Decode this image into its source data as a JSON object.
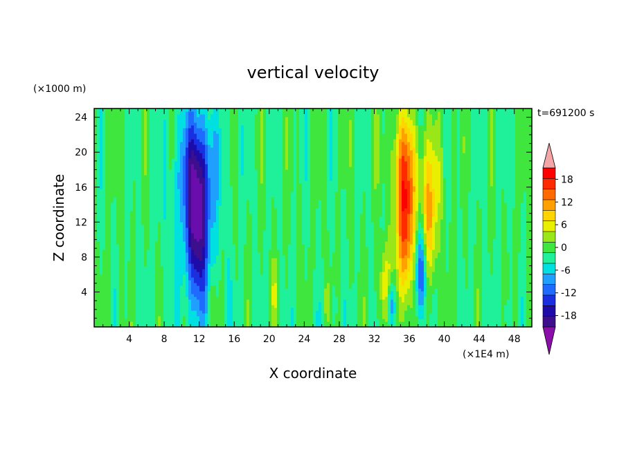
{
  "chart_data": {
    "type": "heatmap",
    "title": "vertical velocity",
    "xlabel": "X coordinate",
    "ylabel": "Z coordinate",
    "x_unit": "(×1E4 m)",
    "y_unit": "(×1000 m)",
    "time_label": "t=691200 s",
    "xlim": [
      0,
      50
    ],
    "ylim": [
      0,
      25
    ],
    "x_ticks": [
      4,
      8,
      12,
      16,
      20,
      24,
      28,
      32,
      36,
      40,
      44,
      48
    ],
    "x_tick_labels": [
      "4",
      "8",
      "12",
      "16",
      "20",
      "24",
      "28",
      "32",
      "36",
      "40",
      "44",
      "48"
    ],
    "y_ticks": [
      4,
      8,
      12,
      16,
      20,
      24
    ],
    "y_tick_labels": [
      "4",
      "8",
      "12",
      "16",
      "20",
      "24"
    ],
    "background_value": 0,
    "blobs": [
      {
        "x": 11.8,
        "z": 12.5,
        "sx": 0.9,
        "sz": 6.5,
        "amp": -20
      },
      {
        "x": 11.5,
        "z": 19.0,
        "sx": 1.6,
        "sz": 4.5,
        "amp": -6
      },
      {
        "x": 11.6,
        "z": 11.0,
        "sx": 2.6,
        "sz": 10.0,
        "amp": -3
      },
      {
        "x": 35.6,
        "z": 12.0,
        "sx": 0.8,
        "sz": 6.5,
        "amp": 19
      },
      {
        "x": 35.4,
        "z": 19.5,
        "sx": 1.4,
        "sz": 4.0,
        "amp": 6
      },
      {
        "x": 37.4,
        "z": 6.5,
        "sx": 0.55,
        "sz": 3.8,
        "amp": -16
      },
      {
        "x": 38.2,
        "z": 10.0,
        "sx": 0.6,
        "sz": 5.0,
        "amp": 12
      },
      {
        "x": 38.6,
        "z": 17.0,
        "sx": 1.0,
        "sz": 4.5,
        "amp": 5
      },
      {
        "x": 33.2,
        "z": 4.5,
        "sx": 0.45,
        "sz": 3.2,
        "amp": 9
      },
      {
        "x": 33.9,
        "z": 2.5,
        "sx": 0.35,
        "sz": 2.0,
        "amp": -12
      },
      {
        "x": 20.6,
        "z": 4.0,
        "sx": 0.4,
        "sz": 2.5,
        "amp": 4
      },
      {
        "x": 26.8,
        "z": 3.0,
        "sx": 0.35,
        "sz": 2.0,
        "amp": 4
      },
      {
        "x": 13.6,
        "z": 3.0,
        "sx": 0.3,
        "sz": 2.0,
        "amp": 4
      },
      {
        "x": 27.4,
        "z": 2.5,
        "sx": 0.3,
        "sz": 1.5,
        "amp": -5
      },
      {
        "x": 47.0,
        "z": 1.5,
        "sx": 0.3,
        "sz": 1.5,
        "amp": -4
      }
    ],
    "legend": {
      "labels": [
        "18",
        "12",
        "6",
        "0",
        "-6",
        "-12",
        "-18"
      ],
      "label_values": [
        18,
        12,
        6,
        0,
        -6,
        -12,
        -18
      ],
      "levels": [
        -21,
        -18,
        -15,
        -12,
        -9,
        -6,
        -3,
        0,
        3,
        6,
        9,
        12,
        15,
        18,
        21
      ],
      "colors": [
        "#6a0dad",
        "#3d0f8c",
        "#1f0ca8",
        "#1a2fe0",
        "#1f6bff",
        "#1fa0ff",
        "#00e0e0",
        "#1ff09a",
        "#3ee63e",
        "#99e619",
        "#e8f000",
        "#ffd400",
        "#ffa000",
        "#ff6a00",
        "#ff2a00",
        "#ff0000",
        "#f4a6a6"
      ],
      "under_color": "#8a0fa8",
      "over_color": "#f4a6a6"
    }
  }
}
